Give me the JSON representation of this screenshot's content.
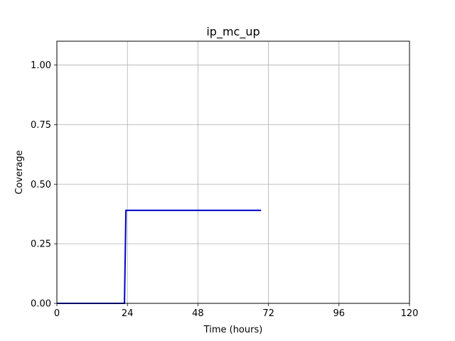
{
  "chart_data": {
    "type": "line",
    "title": "ip_mc_up",
    "xlabel": "Time (hours)",
    "ylabel": "Coverage",
    "xlim": [
      0,
      120
    ],
    "ylim": [
      0,
      1.1
    ],
    "xticks": [
      0,
      24,
      48,
      72,
      96,
      120
    ],
    "xtick_labels": [
      "0",
      "24",
      "48",
      "72",
      "96",
      "120"
    ],
    "yticks": [
      0,
      0.25,
      0.5,
      0.75,
      1.0
    ],
    "ytick_labels": [
      "0.00",
      "0.25",
      "0.50",
      "0.75",
      "1.00"
    ],
    "grid": true,
    "series": [
      {
        "color": "#0000cc",
        "x": [
          0,
          23.0,
          23.5,
          69.5
        ],
        "y": [
          0,
          0,
          0.39,
          0.39
        ]
      }
    ]
  }
}
